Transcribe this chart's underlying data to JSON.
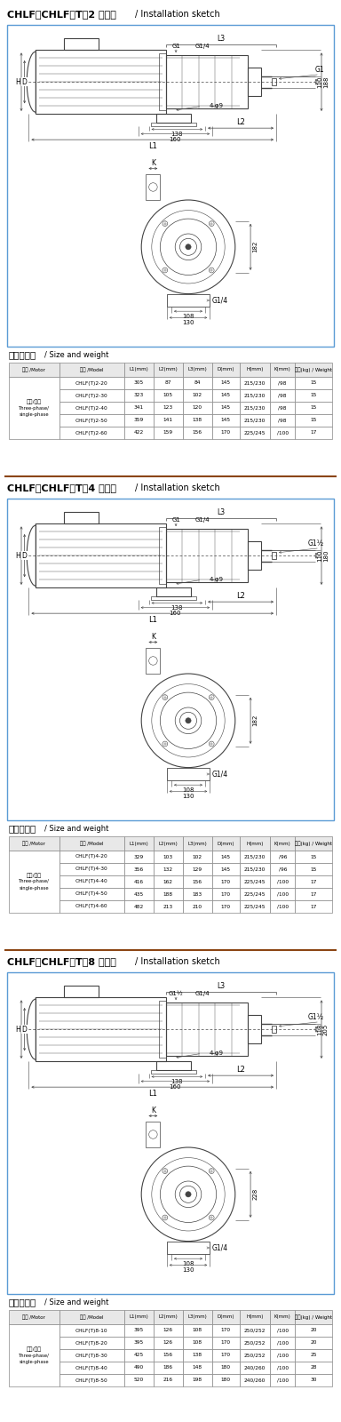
{
  "sections": [
    {
      "title_cn": "CHLF、CHLF（T）2 安装图",
      "title_en": "/ Installation sketch",
      "table_title": "尺寸和重量",
      "table_title_en": "/ Size and weight",
      "motor_type_cn": "三相/单相",
      "motor_type_en1": "Three-phase/",
      "motor_type_en2": "single-phase",
      "col_headers": [
        "L1(mm)",
        "L2(mm)",
        "L3(mm)",
        "D(mm)",
        "H(mm)",
        "K(mm)",
        "重量(kg) / Weight"
      ],
      "rows": [
        [
          "CHLF(T)2-20",
          "305",
          "87",
          "84",
          "145",
          "215/230",
          "/98",
          "15"
        ],
        [
          "CHLF(T)2-30",
          "323",
          "105",
          "102",
          "145",
          "215/230",
          "/98",
          "15"
        ],
        [
          "CHLF(T)2-40",
          "341",
          "123",
          "120",
          "145",
          "215/230",
          "/98",
          "15"
        ],
        [
          "CHLF(T)2-50",
          "359",
          "141",
          "138",
          "145",
          "215/230",
          "/98",
          "15"
        ],
        [
          "CHLF(T)2-60",
          "422",
          "159",
          "156",
          "170",
          "225/245",
          "/100",
          "17"
        ]
      ],
      "right_dim1": "188",
      "right_dim2": "110",
      "front_dim1": "108",
      "front_dim2": "130",
      "front_right_dim": "182",
      "label_g_top1": "G1",
      "label_g_top2": "G1/4",
      "label_g_right": "G1",
      "label_g_front": "G1/4"
    },
    {
      "title_cn": "CHLF、CHLF（T）4 安装图",
      "title_en": "/ Installation sketch",
      "table_title": "尺寸和重量",
      "table_title_en": "/ Size and weight",
      "motor_type_cn": "三相/单相",
      "motor_type_en1": "Three-phase/",
      "motor_type_en2": "single-phase",
      "col_headers": [
        "L1(mm)",
        "L2(mm)",
        "L3(mm)",
        "D(mm)",
        "H(mm)",
        "K(mm)",
        "重量(kg) / Weight"
      ],
      "rows": [
        [
          "CHLF(T)4-20",
          "329",
          "103",
          "102",
          "145",
          "215/230",
          "/96",
          "15"
        ],
        [
          "CHLF(T)4-30",
          "356",
          "132",
          "129",
          "145",
          "215/230",
          "/96",
          "15"
        ],
        [
          "CHLF(T)4-40",
          "416",
          "162",
          "156",
          "170",
          "225/245",
          "/100",
          "17"
        ],
        [
          "CHLF(T)4-50",
          "435",
          "188",
          "183",
          "170",
          "225/245",
          "/100",
          "17"
        ],
        [
          "CHLF(T)4-60",
          "482",
          "213",
          "210",
          "170",
          "225/245",
          "/100",
          "17"
        ]
      ],
      "right_dim1": "180",
      "right_dim2": "110",
      "front_dim1": "108",
      "front_dim2": "130",
      "front_right_dim": "182",
      "label_g_top1": "G1",
      "label_g_top2": "G1/4",
      "label_g_right": "G1½",
      "label_g_front": "G1/4"
    },
    {
      "title_cn": "CHLF、CHLF（T）8 安装图",
      "title_en": "/ Installation sketch",
      "table_title": "尺寸和重量",
      "table_title_en": "/ Size and weight",
      "motor_type_cn": "三相/单相",
      "motor_type_en1": "Three-phase/",
      "motor_type_en2": "single-phase",
      "col_headers": [
        "L1(mm)",
        "L2(mm)",
        "L3(mm)",
        "D(mm)",
        "H(mm)",
        "K(mm)",
        "重量(kg) / Weight"
      ],
      "rows": [
        [
          "CHLF(T)8-10",
          "395",
          "126",
          "108",
          "170",
          "250/252",
          "/100",
          "20"
        ],
        [
          "CHLF(T)8-20",
          "395",
          "126",
          "108",
          "170",
          "250/252",
          "/100",
          "20"
        ],
        [
          "CHLF(T)8-30",
          "425",
          "156",
          "138",
          "170",
          "250/252",
          "/100",
          "25"
        ],
        [
          "CHLF(T)8-40",
          "490",
          "186",
          "148",
          "180",
          "240/260",
          "/100",
          "28"
        ],
        [
          "CHLF(T)8-50",
          "520",
          "216",
          "198",
          "180",
          "240/260",
          "/100",
          "30"
        ]
      ],
      "right_dim1": "205",
      "right_dim2": "118",
      "front_dim1": "108",
      "front_dim2": "130",
      "front_right_dim": "228",
      "label_g_top1": "G1½",
      "label_g_top2": "G1/4",
      "label_g_right": "G1½",
      "label_g_front": "G1/4"
    }
  ],
  "bg_color": "#ffffff",
  "border_color": "#5b9bd5",
  "sep_color": "#8B4513",
  "lc": "#444444",
  "lc2": "#666666"
}
